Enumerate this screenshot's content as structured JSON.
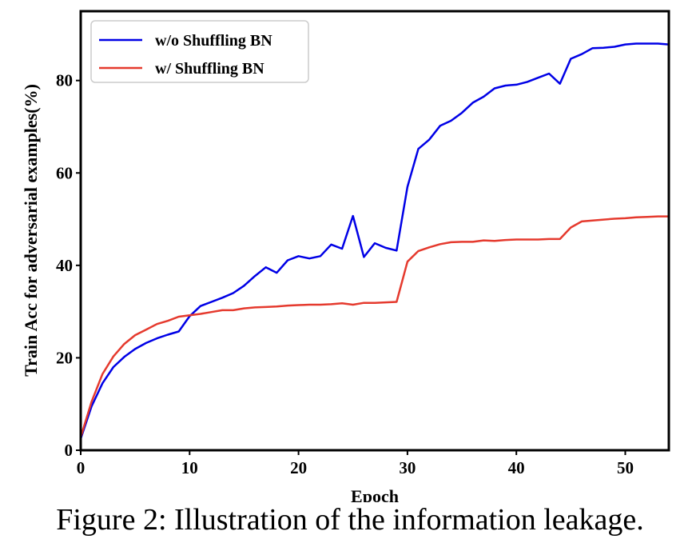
{
  "caption": "Figure 2: Illustration of the information leakage.",
  "chart_data": {
    "type": "line",
    "xlabel": "Epoch",
    "ylabel": "Train Acc for adversarial examples(%)",
    "xlim": [
      0,
      54
    ],
    "ylim": [
      0,
      95
    ],
    "xticks": [
      0,
      10,
      20,
      30,
      40,
      50
    ],
    "yticks": [
      0,
      20,
      40,
      60,
      80
    ],
    "grid": false,
    "legend_position": "top-left",
    "x": [
      0,
      1,
      2,
      3,
      4,
      5,
      6,
      7,
      8,
      9,
      10,
      11,
      12,
      13,
      14,
      15,
      16,
      17,
      18,
      19,
      20,
      21,
      22,
      23,
      24,
      25,
      26,
      27,
      28,
      29,
      30,
      31,
      32,
      33,
      34,
      35,
      36,
      37,
      38,
      39,
      40,
      41,
      42,
      43,
      44,
      45,
      46,
      47,
      48,
      49,
      50,
      51,
      52,
      53,
      54
    ],
    "series": [
      {
        "name": "w/o Shuffling BN",
        "color": "#0000e6",
        "values": [
          2.5,
          9.5,
          14.5,
          18,
          20.2,
          21.9,
          23.2,
          24.2,
          25.0,
          25.7,
          29.0,
          31.2,
          32.1,
          33.0,
          34.0,
          35.6,
          37.7,
          39.6,
          38.4,
          41.1,
          42.0,
          41.5,
          42.0,
          44.5,
          43.6,
          50.7,
          41.8,
          44.8,
          43.8,
          43.2,
          57.0,
          65.2,
          67.2,
          70.2,
          71.3,
          73.0,
          75.2,
          76.5,
          78.3,
          78.9,
          79.1,
          79.7,
          80.6,
          81.5,
          79.3,
          84.7,
          85.7,
          87.0,
          87.1,
          87.3,
          87.8,
          88.0,
          88.0,
          88.0,
          87.8
        ]
      },
      {
        "name": "w/ Shuffling BN",
        "color": "#e53a2e",
        "values": [
          2.8,
          10.5,
          16.5,
          20.3,
          23.0,
          24.9,
          26.1,
          27.3,
          28.0,
          28.9,
          29.2,
          29.5,
          29.9,
          30.3,
          30.3,
          30.7,
          30.9,
          31.0,
          31.1,
          31.3,
          31.4,
          31.5,
          31.5,
          31.6,
          31.8,
          31.5,
          31.9,
          31.9,
          32.0,
          32.1,
          40.8,
          43.1,
          43.9,
          44.6,
          45.0,
          45.1,
          45.1,
          45.4,
          45.3,
          45.5,
          45.6,
          45.6,
          45.6,
          45.7,
          45.7,
          48.2,
          49.5,
          49.7,
          49.9,
          50.1,
          50.2,
          50.4,
          50.5,
          50.6,
          50.6
        ]
      }
    ]
  }
}
